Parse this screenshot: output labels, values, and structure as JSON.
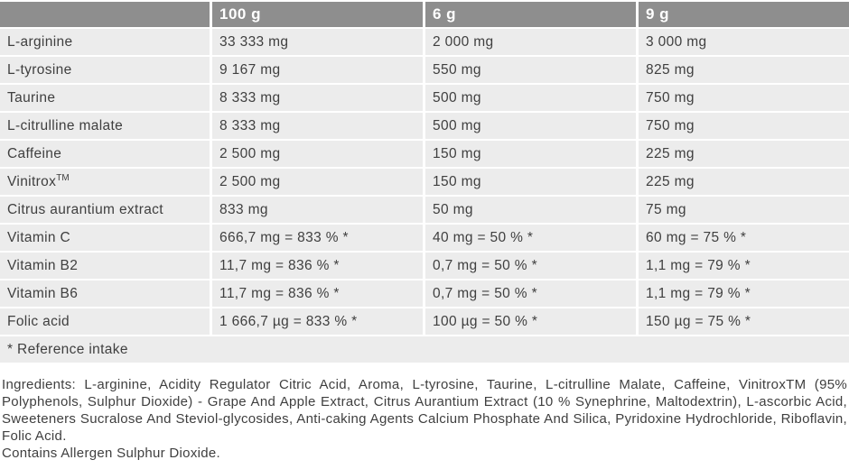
{
  "colors": {
    "header_bg": "#8e8e8e",
    "header_text": "#ffffff",
    "row_bg": "#ececec",
    "text": "#3f3f3f",
    "separator": "#ffffff"
  },
  "table": {
    "columns": [
      "",
      "100 g",
      "6 g",
      "9 g"
    ],
    "rows": [
      {
        "name": "L-arginine",
        "sup": "",
        "per_100g": "33 333 mg",
        "per_6g": "2 000 mg",
        "per_9g": "3 000 mg"
      },
      {
        "name": "L-tyrosine",
        "sup": "",
        "per_100g": "9 167 mg",
        "per_6g": "550 mg",
        "per_9g": "825 mg"
      },
      {
        "name": "Taurine",
        "sup": "",
        "per_100g": "8 333 mg",
        "per_6g": "500 mg",
        "per_9g": "750 mg"
      },
      {
        "name": "L-citrulline malate",
        "sup": "",
        "per_100g": "8 333 mg",
        "per_6g": "500 mg",
        "per_9g": "750 mg"
      },
      {
        "name": "Caffeine",
        "sup": "",
        "per_100g": "2 500 mg",
        "per_6g": "150 mg",
        "per_9g": "225 mg"
      },
      {
        "name": "Vinitrox",
        "sup": "TM",
        "per_100g": "2 500 mg",
        "per_6g": "150 mg",
        "per_9g": "225 mg"
      },
      {
        "name": "Citrus aurantium extract",
        "sup": "",
        "per_100g": "833 mg",
        "per_6g": "50 mg",
        "per_9g": "75 mg"
      },
      {
        "name": "Vitamin C",
        "sup": "",
        "per_100g": "666,7 mg = 833 % *",
        "per_6g": "40 mg = 50 % *",
        "per_9g": "60 mg = 75 % *"
      },
      {
        "name": "Vitamin B2",
        "sup": "",
        "per_100g": "11,7 mg = 836 % *",
        "per_6g": "0,7 mg = 50 % *",
        "per_9g": "1,1 mg = 79 % *"
      },
      {
        "name": "Vitamin B6",
        "sup": "",
        "per_100g": "11,7 mg = 836 % *",
        "per_6g": "0,7 mg = 50 % *",
        "per_9g": "1,1 mg = 79 % *"
      },
      {
        "name": "Folic acid",
        "sup": "",
        "per_100g": "1 666,7 µg = 833 % *",
        "per_6g": "100 µg = 50 % *",
        "per_9g": "150 µg = 75 % *"
      }
    ],
    "footnote": "* Reference intake"
  },
  "ingredients": {
    "text": "Ingredients: L-arginine, Acidity Regulator Citric Acid, Aroma, L-tyrosine, Taurine, L-citrulline Malate, Caffeine, VinitroxTM (95% Polyphenols, Sulphur Dioxide) - Grape And Apple Extract, Citrus Aurantium Extract (10 % Synephrine, Maltodextrin), L-ascorbic Acid, Sweeteners Sucralose And Steviol-glycosides, Anti-caking Agents Calcium Phosphate And Silica, Pyridoxine Hydrochloride, Riboflavin, Folic Acid.",
    "allergen": "Contains Allergen Sulphur Dioxide."
  }
}
